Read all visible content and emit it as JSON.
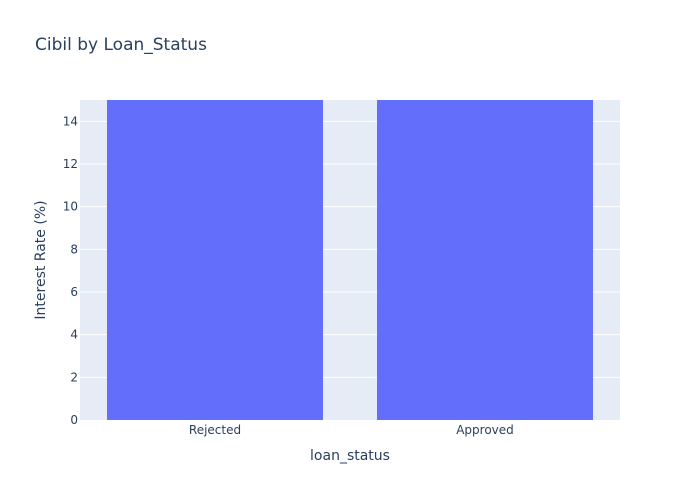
{
  "chart_data": {
    "type": "bar",
    "title": "Cibil by Loan_Status",
    "xlabel": "loan_status",
    "ylabel": "Interest Rate (%)",
    "categories": [
      "Rejected",
      "Approved"
    ],
    "values": [
      15,
      15
    ],
    "ylim": [
      0,
      15
    ],
    "yticks": [
      0,
      2,
      4,
      6,
      8,
      10,
      12,
      14
    ],
    "grid": true,
    "bar_color": "#636efa",
    "plot_background": "#e5ecf6"
  }
}
